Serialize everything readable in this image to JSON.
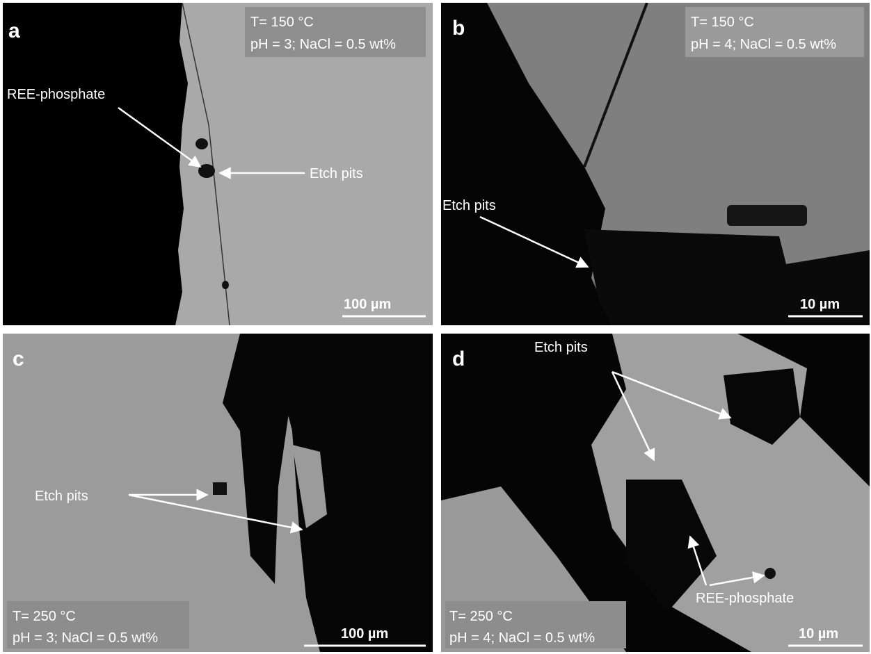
{
  "panels": [
    {
      "label": "a",
      "conditions": [
        "T= 150 °C",
        "pH = 3; NaCl = 0.5 wt%"
      ],
      "annotations": [
        "REE-phosphate",
        "Etch pits"
      ],
      "scale_bar": "100 µm"
    },
    {
      "label": "b",
      "conditions": [
        "T= 150 °C",
        "pH = 4; NaCl = 0.5 wt%"
      ],
      "annotations": [
        "Etch pits"
      ],
      "scale_bar": "10 µm"
    },
    {
      "label": "c",
      "conditions": [
        "T= 250 °C",
        "pH = 3; NaCl = 0.5 wt%"
      ],
      "annotations": [
        "Etch pits"
      ],
      "scale_bar": "100 µm"
    },
    {
      "label": "d",
      "conditions": [
        "T= 250 °C",
        "pH = 4; NaCl = 0.5 wt%"
      ],
      "annotations": [
        "Etch pits",
        "REE-phosphate"
      ],
      "scale_bar": "10 µm"
    }
  ]
}
